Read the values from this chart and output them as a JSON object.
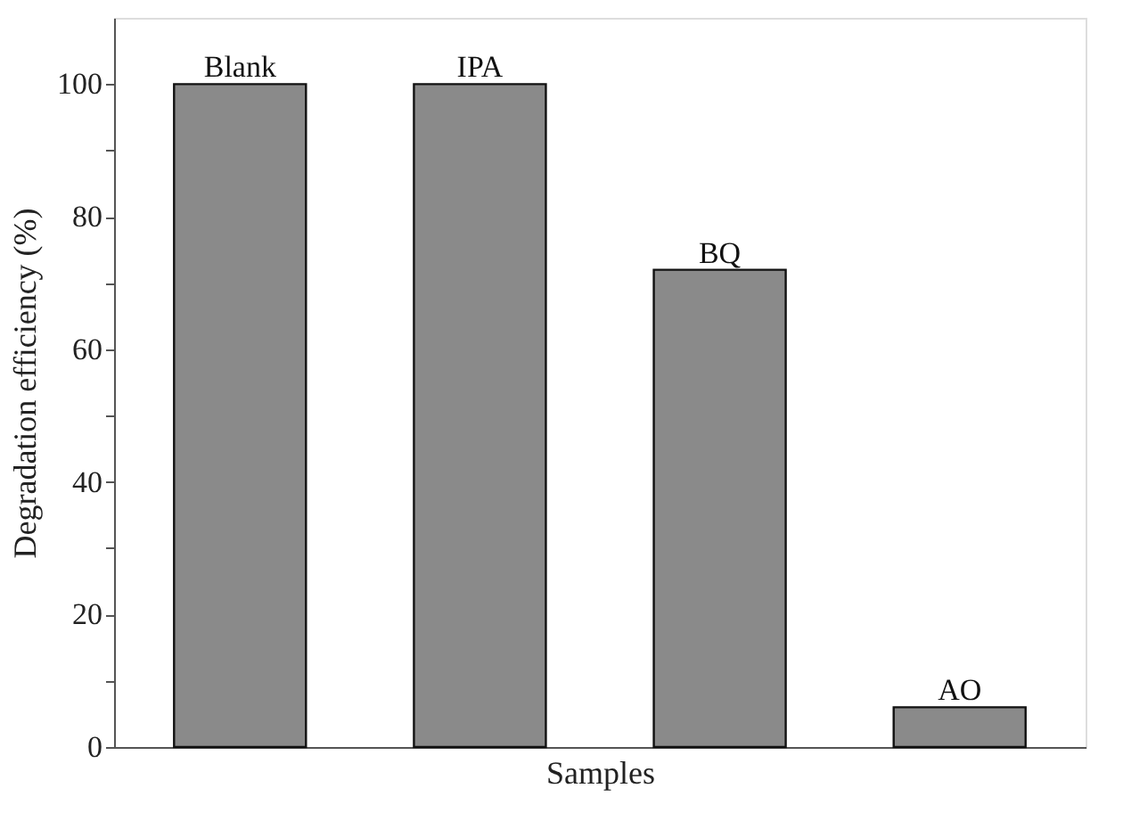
{
  "chart_data": {
    "type": "bar",
    "xlabel": "Samples",
    "ylabel": "Degradation efficiency (%)",
    "categories": [
      "Blank",
      "IPA",
      "BQ",
      "AO"
    ],
    "values": [
      100,
      100,
      72,
      6
    ],
    "color": "#8a8a8a",
    "ylim": [
      0,
      110
    ],
    "yticks": [
      0,
      {
        "value": 10,
        "label": null
      },
      20,
      {
        "value": 30,
        "label": null
      },
      40,
      {
        "value": 50,
        "label": null
      },
      60,
      {
        "value": 70,
        "label": null
      },
      80,
      {
        "value": 90,
        "label": null
      },
      100
    ],
    "tick_labels": "y",
    "grid": false
  }
}
